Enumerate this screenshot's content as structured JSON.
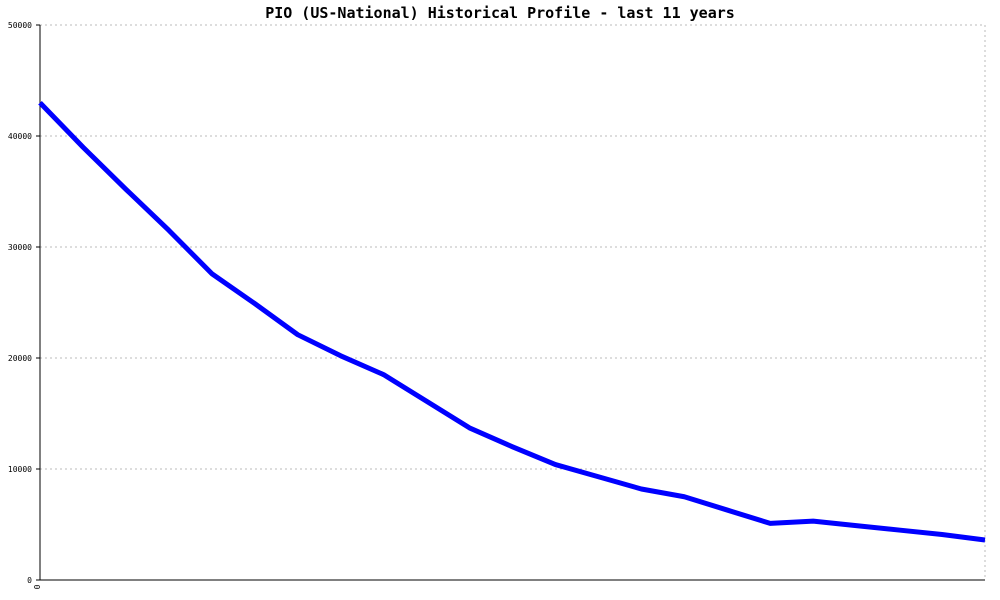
{
  "chart_data": {
    "type": "line",
    "title": "PIO (US-National) Historical Profile - last 11 years",
    "x": [
      0,
      1,
      2,
      3,
      4,
      5,
      6,
      7,
      8,
      9,
      10,
      11,
      12,
      13,
      14,
      15,
      16,
      17,
      18,
      19,
      20,
      21,
      22
    ],
    "series": [
      {
        "color": "#0000ff",
        "values": [
          43000,
          39000,
          35200,
          31500,
          27600,
          24900,
          22100,
          20200,
          18500,
          16100,
          13700,
          12000,
          10400,
          9300,
          8200,
          7500,
          6300,
          5100,
          5300,
          4900,
          4500,
          4100,
          3600
        ]
      }
    ],
    "xlim": [
      0,
      22
    ],
    "xticks": [
      0
    ],
    "ylim": [
      0,
      50000
    ],
    "yticks": [
      0,
      10000,
      20000,
      30000,
      40000,
      50000
    ],
    "grid": true
  }
}
